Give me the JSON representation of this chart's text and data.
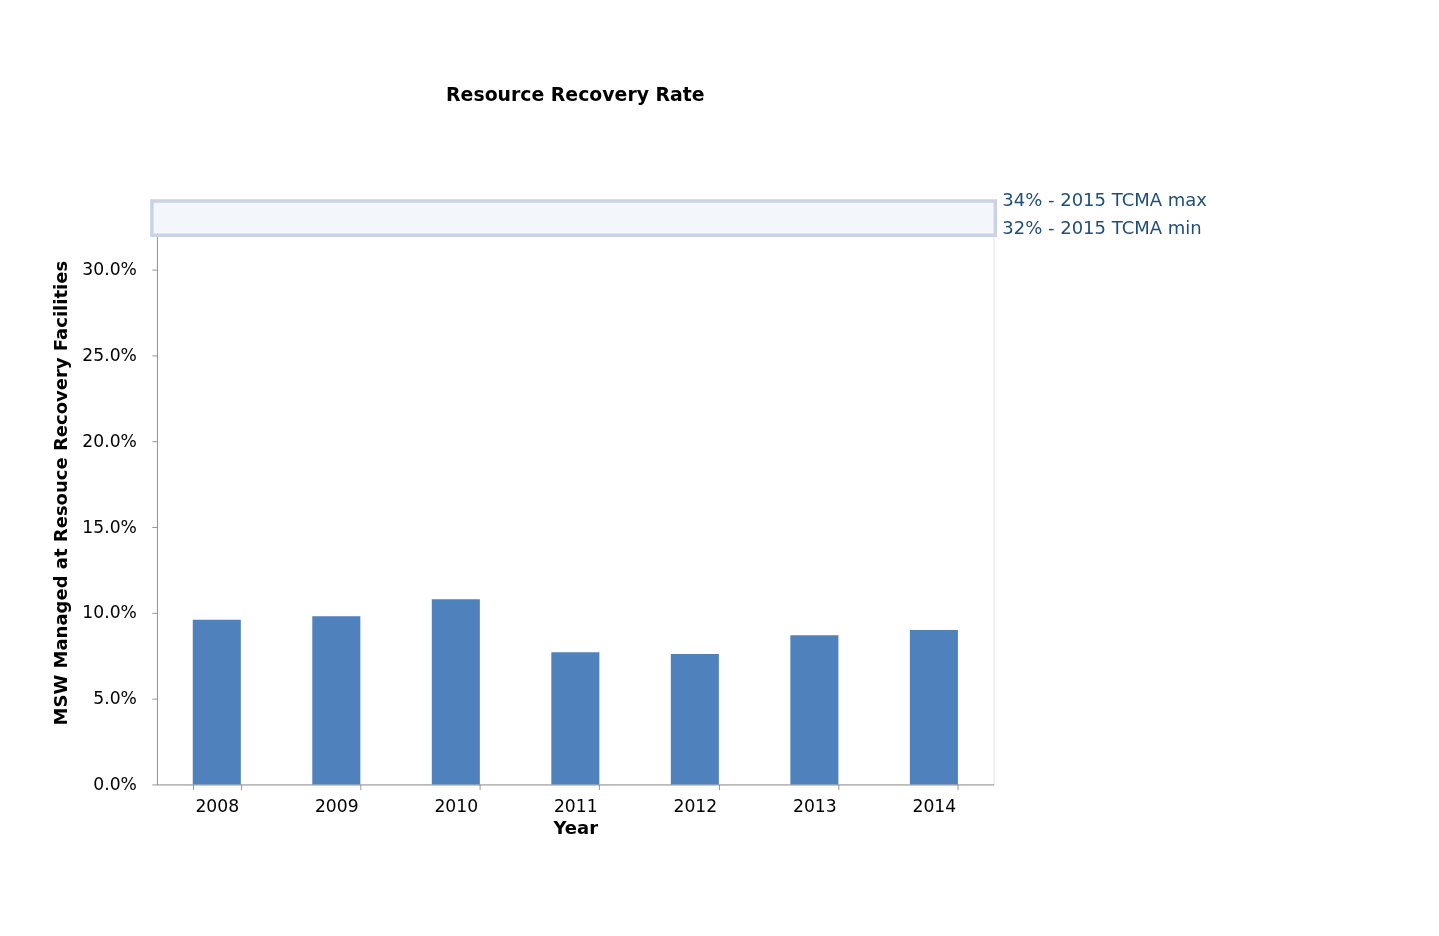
{
  "chart_data": {
    "type": "bar",
    "title": "Resource Recovery Rate",
    "xlabel": "Year",
    "ylabel": "MSW Managed at Resouce Recovery Facilities",
    "categories": [
      "2008",
      "2009",
      "2010",
      "2011",
      "2012",
      "2013",
      "2014"
    ],
    "values": [
      9.6,
      9.8,
      10.8,
      7.7,
      7.6,
      8.7,
      9.0
    ],
    "color": "#4f81bd",
    "ylim": [
      0,
      34
    ],
    "yticks": [
      {
        "value": 0,
        "label": "0.0%"
      },
      {
        "value": 5,
        "label": "5.0%"
      },
      {
        "value": 10,
        "label": "10.0%"
      },
      {
        "value": 15,
        "label": "15.0%"
      },
      {
        "value": 20,
        "label": "20.0%"
      },
      {
        "value": 25,
        "label": "25.0%"
      },
      {
        "value": 30,
        "label": "30.0%"
      }
    ],
    "bands": [
      {
        "axis": "y",
        "from": 32,
        "to": 34,
        "color": "#f3f6fb"
      }
    ],
    "annotations": [
      "34% - 2015 TCMA max",
      "32% - 2015 TCMA min"
    ],
    "grid": false
  }
}
